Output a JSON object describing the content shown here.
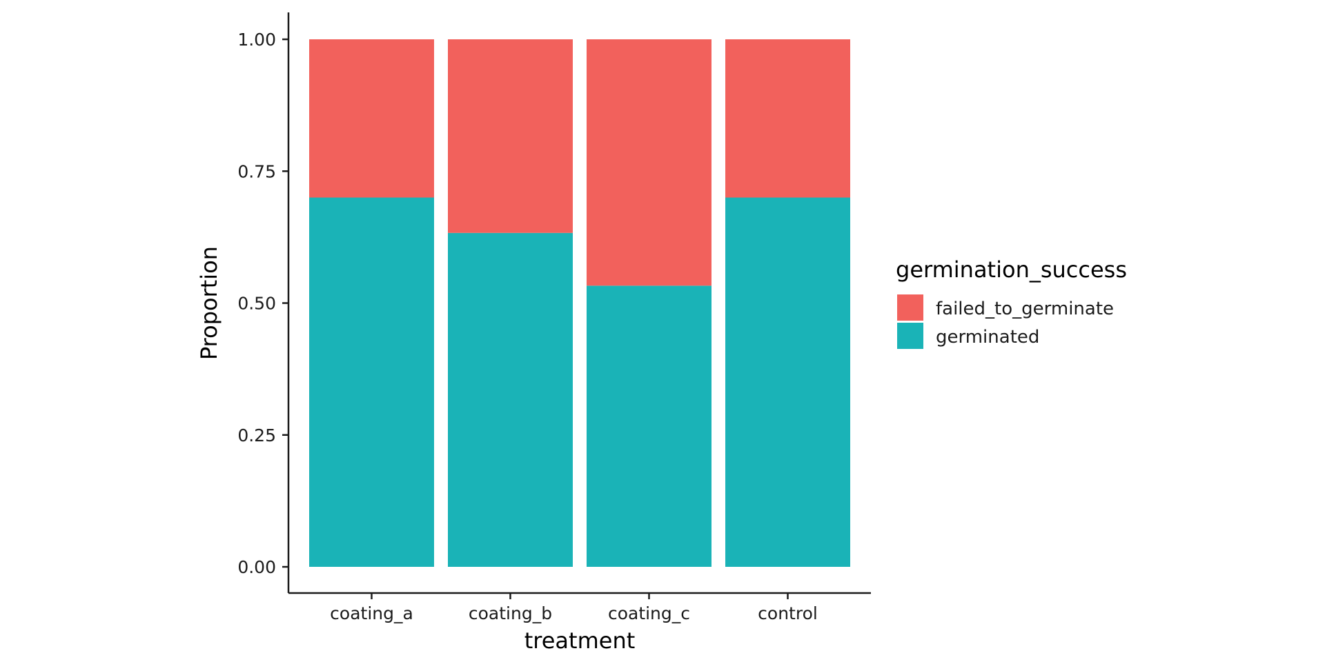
{
  "chart_data": {
    "type": "bar",
    "stacked": true,
    "categories": [
      "coating_a",
      "coating_b",
      "coating_c",
      "control"
    ],
    "series": [
      {
        "name": "germinated",
        "values": [
          0.7,
          0.633,
          0.533,
          0.7
        ],
        "color": "#1AB3B7"
      },
      {
        "name": "failed_to_germinate",
        "values": [
          0.3,
          0.367,
          0.467,
          0.3
        ],
        "color": "#F2615C"
      }
    ],
    "xlabel": "treatment",
    "ylabel": "Proportion",
    "ylim": [
      0,
      1
    ],
    "yticks": [
      0,
      0.25,
      0.5,
      0.75,
      1
    ],
    "ytick_labels": [
      "0.00",
      "0.25",
      "0.50",
      "0.75",
      "1.00"
    ],
    "legend": {
      "title": "germination_success",
      "placement": "right",
      "items": [
        {
          "label": "failed_to_germinate",
          "color": "#F2615C"
        },
        {
          "label": "germinated",
          "color": "#1AB3B7"
        }
      ]
    },
    "grid": false
  }
}
